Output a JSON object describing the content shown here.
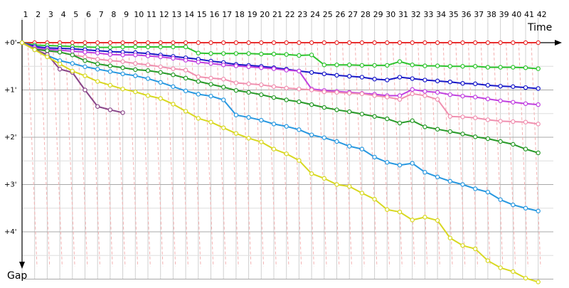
{
  "chart_data": {
    "type": "line",
    "xlabel": "Time",
    "ylabel": "Gap",
    "x_ticks": [
      "1",
      "2",
      "3",
      "4",
      "5",
      "6",
      "7",
      "8",
      "9",
      "10",
      "11",
      "12",
      "13",
      "14",
      "15",
      "16",
      "17",
      "18",
      "19",
      "20",
      "21",
      "22",
      "23",
      "24",
      "25",
      "26",
      "27",
      "28",
      "29",
      "30",
      "31",
      "32",
      "33",
      "34",
      "35",
      "36",
      "37",
      "38",
      "39",
      "40",
      "41",
      "42"
    ],
    "y_ticks": [
      "+0'",
      "+1'",
      "+2'",
      "+3'",
      "+4'"
    ],
    "ylim_minutes": [
      0,
      5
    ],
    "y_inverted": true,
    "grid": true,
    "series": [
      {
        "color": "#e83030",
        "values": [
          0,
          0,
          0,
          0,
          0,
          0,
          0,
          0,
          0,
          0,
          0,
          0,
          0,
          0,
          0,
          0,
          0,
          0,
          0,
          0,
          0,
          0,
          0,
          0,
          0,
          0,
          0,
          0,
          0,
          0,
          0,
          0,
          0,
          0,
          0,
          0,
          0,
          0,
          0,
          0,
          0,
          0
        ]
      },
      {
        "color": "#2ec42e",
        "values": [
          0,
          0.05,
          0.06,
          0.07,
          0.08,
          0.09,
          0.1,
          0.1,
          0.09,
          0.09,
          0.09,
          0.09,
          0.09,
          0.09,
          0.22,
          0.23,
          0.23,
          0.23,
          0.23,
          0.24,
          0.24,
          0.25,
          0.27,
          0.26,
          0.47,
          0.47,
          0.47,
          0.48,
          0.48,
          0.48,
          0.4,
          0.47,
          0.49,
          0.49,
          0.5,
          0.5,
          0.5,
          0.52,
          0.52,
          0.52,
          0.53,
          0.55
        ]
      },
      {
        "color": "#1818c8",
        "values": [
          0,
          0.08,
          0.11,
          0.12,
          0.13,
          0.15,
          0.17,
          0.19,
          0.2,
          0.21,
          0.23,
          0.26,
          0.29,
          0.32,
          0.35,
          0.39,
          0.42,
          0.46,
          0.48,
          0.5,
          0.53,
          0.56,
          0.6,
          0.63,
          0.66,
          0.69,
          0.71,
          0.73,
          0.77,
          0.79,
          0.73,
          0.76,
          0.79,
          0.81,
          0.83,
          0.86,
          0.87,
          0.9,
          0.92,
          0.93,
          0.95,
          0.97
        ]
      },
      {
        "color": "#c040e0",
        "values": [
          0,
          0.11,
          0.14,
          0.16,
          0.18,
          0.2,
          0.22,
          0.25,
          0.26,
          0.26,
          0.28,
          0.3,
          0.33,
          0.37,
          0.41,
          0.44,
          0.47,
          0.49,
          0.51,
          0.53,
          0.55,
          0.58,
          0.6,
          0.98,
          1.01,
          1.03,
          1.05,
          1.07,
          1.09,
          1.12,
          1.12,
          0.99,
          1.03,
          1.05,
          1.1,
          1.13,
          1.15,
          1.19,
          1.23,
          1.26,
          1.29,
          1.31
        ]
      },
      {
        "color": "#f090b0",
        "values": [
          0,
          0.14,
          0.18,
          0.2,
          0.26,
          0.3,
          0.35,
          0.38,
          0.4,
          0.44,
          0.47,
          0.51,
          0.55,
          0.58,
          0.72,
          0.75,
          0.77,
          0.85,
          0.87,
          0.89,
          0.93,
          0.96,
          0.98,
          1.0,
          1.04,
          1.05,
          1.07,
          1.08,
          1.12,
          1.15,
          1.2,
          1.08,
          1.12,
          1.2,
          1.56,
          1.57,
          1.59,
          1.63,
          1.66,
          1.67,
          1.68,
          1.72
        ]
      },
      {
        "color": "#289a28",
        "values": [
          0,
          0.14,
          0.17,
          0.2,
          0.26,
          0.38,
          0.45,
          0.49,
          0.53,
          0.57,
          0.59,
          0.63,
          0.68,
          0.75,
          0.82,
          0.88,
          0.94,
          1.01,
          1.05,
          1.1,
          1.16,
          1.21,
          1.25,
          1.31,
          1.37,
          1.42,
          1.46,
          1.51,
          1.56,
          1.61,
          1.7,
          1.65,
          1.78,
          1.83,
          1.88,
          1.93,
          1.99,
          2.03,
          2.09,
          2.15,
          2.25,
          2.33
        ]
      },
      {
        "color": "#2898e0",
        "values": [
          0,
          0.15,
          0.27,
          0.38,
          0.44,
          0.51,
          0.56,
          0.61,
          0.66,
          0.7,
          0.76,
          0.84,
          0.93,
          1.02,
          1.09,
          1.13,
          1.21,
          1.53,
          1.58,
          1.64,
          1.72,
          1.77,
          1.84,
          1.95,
          2.01,
          2.09,
          2.19,
          2.25,
          2.42,
          2.53,
          2.59,
          2.55,
          2.74,
          2.84,
          2.93,
          3.0,
          3.09,
          3.16,
          3.32,
          3.43,
          3.5,
          3.56
        ]
      },
      {
        "color": "#884488",
        "values": [
          0,
          0.15,
          0.25,
          0.56,
          0.63,
          1.0,
          1.35,
          1.42,
          1.48
        ]
      },
      {
        "color": "#d8d820",
        "values": [
          0,
          0.15,
          0.3,
          0.45,
          0.6,
          0.7,
          0.82,
          0.9,
          0.98,
          1.04,
          1.12,
          1.18,
          1.3,
          1.45,
          1.6,
          1.68,
          1.8,
          1.92,
          2.02,
          2.1,
          2.25,
          2.35,
          2.49,
          2.77,
          2.87,
          3.0,
          3.04,
          3.18,
          3.31,
          3.53,
          3.58,
          3.75,
          3.69,
          3.76,
          4.13,
          4.29,
          4.36,
          4.61,
          4.76,
          4.84,
          4.98,
          5.06
        ]
      }
    ]
  }
}
